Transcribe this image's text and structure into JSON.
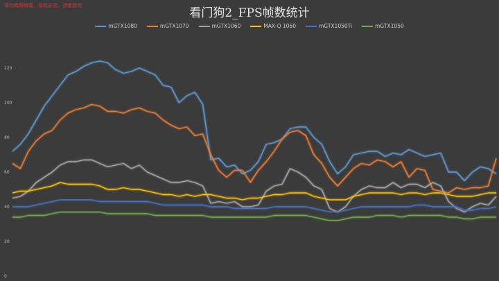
{
  "watermark": "请勿商用转载，侵权必究，违者追究",
  "chart_data": {
    "type": "line",
    "title": "看门狗2_FPS帧数统计",
    "xlabel": "",
    "ylabel": "",
    "ylim": [
      0,
      140
    ],
    "yticks": [
      0,
      20,
      40,
      60,
      80,
      100,
      120
    ],
    "ytick_labels": [
      "0",
      "20",
      "40",
      "60",
      "80",
      "100",
      "120"
    ],
    "grid": false,
    "legend_position": "top",
    "series": [
      {
        "name": "mGTX1080",
        "color": "#5b9bd5",
        "values": [
          72,
          76,
          82,
          90,
          98,
          104,
          110,
          116,
          118,
          121,
          123,
          124,
          123,
          119,
          117,
          118,
          120,
          118,
          116,
          110,
          109,
          100,
          104,
          106,
          99,
          67,
          68,
          63,
          64,
          59,
          61,
          66,
          76,
          77,
          79,
          85,
          86,
          86,
          80,
          76,
          66,
          59,
          63,
          70,
          71,
          72,
          72,
          69,
          71,
          70,
          73,
          71,
          69,
          70,
          71,
          60,
          60,
          55,
          60,
          63,
          62,
          59
        ]
      },
      {
        "name": "mGTX1070",
        "color": "#ed7d31",
        "values": [
          65,
          62,
          72,
          78,
          82,
          84,
          90,
          94,
          96,
          97,
          99,
          98,
          95,
          95,
          94,
          96,
          97,
          95,
          94,
          90,
          87,
          85,
          86,
          81,
          82,
          70,
          61,
          57,
          61,
          61,
          54,
          61,
          66,
          72,
          79,
          83,
          84,
          81,
          70,
          65,
          57,
          52,
          57,
          62,
          65,
          64,
          67,
          66,
          63,
          66,
          57,
          62,
          61,
          50,
          49,
          48,
          51,
          50,
          51,
          51,
          52,
          68
        ]
      },
      {
        "name": "mGTX1060",
        "color": "#a5a5a5",
        "values": [
          45,
          46,
          49,
          54,
          57,
          60,
          64,
          66,
          66,
          67,
          67,
          65,
          63,
          64,
          65,
          62,
          64,
          60,
          58,
          56,
          54,
          54,
          55,
          54,
          52,
          42,
          43,
          42,
          43,
          40,
          40,
          41,
          49,
          52,
          53,
          62,
          60,
          57,
          52,
          50,
          39,
          37,
          40,
          46,
          50,
          52,
          51,
          51,
          54,
          51,
          53,
          53,
          51,
          54,
          52,
          43,
          39,
          37,
          40,
          42,
          41,
          46
        ]
      },
      {
        "name": "MAX-Q 1060",
        "color": "#ffc000",
        "values": [
          48,
          49,
          49,
          50,
          51,
          52,
          54,
          53,
          53,
          53,
          53,
          52,
          50,
          50,
          51,
          50,
          50,
          49,
          48,
          47,
          47,
          46,
          47,
          46,
          47,
          47,
          46,
          45,
          45,
          44,
          45,
          45,
          46,
          47,
          47,
          48,
          48,
          48,
          46,
          45,
          44,
          44,
          44,
          46,
          47,
          48,
          48,
          48,
          48,
          47,
          48,
          48,
          47,
          48,
          48,
          47,
          46,
          46,
          46,
          47,
          48,
          48
        ]
      },
      {
        "name": "mGTX1050Ti",
        "color": "#4472c4",
        "values": [
          40,
          40,
          40,
          41,
          42,
          43,
          44,
          44,
          44,
          44,
          44,
          43,
          43,
          43,
          43,
          43,
          43,
          43,
          42,
          41,
          41,
          41,
          41,
          41,
          41,
          40,
          40,
          40,
          39,
          39,
          39,
          39,
          39,
          40,
          40,
          40,
          40,
          40,
          39,
          38,
          37,
          37,
          38,
          39,
          40,
          40,
          40,
          40,
          40,
          40,
          40,
          41,
          41,
          40,
          40,
          40,
          40,
          38,
          38,
          39,
          39,
          40
        ]
      },
      {
        "name": "mGTX1050",
        "color": "#70ad47",
        "values": [
          34,
          34,
          35,
          35,
          35,
          36,
          37,
          37,
          37,
          37,
          37,
          37,
          36,
          36,
          36,
          36,
          36,
          36,
          35,
          35,
          35,
          35,
          35,
          35,
          35,
          34,
          34,
          34,
          34,
          34,
          34,
          34,
          34,
          35,
          35,
          35,
          35,
          35,
          34,
          33,
          32,
          32,
          33,
          34,
          34,
          34,
          35,
          35,
          35,
          34,
          35,
          35,
          35,
          35,
          35,
          34,
          34,
          33,
          33,
          34,
          34,
          34
        ]
      }
    ]
  }
}
